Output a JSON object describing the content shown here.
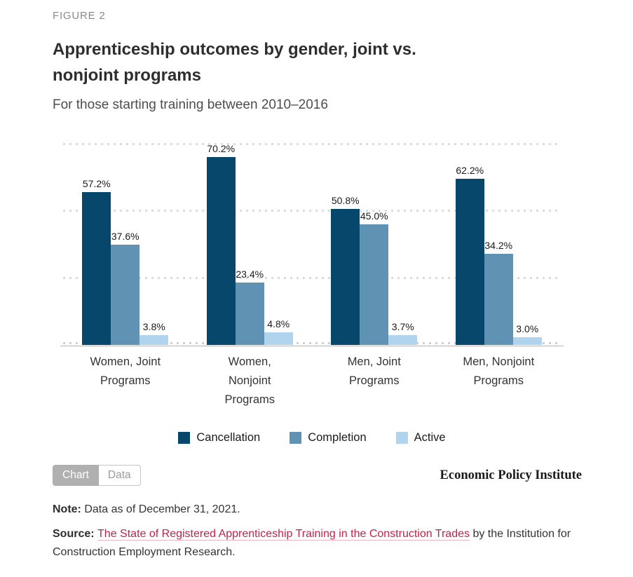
{
  "figure_label": "FIGURE 2",
  "title": "Apprenticeship outcomes by gender, joint vs. nonjoint programs",
  "subtitle": "For those starting training between 2010–2016",
  "chart_data": {
    "type": "bar",
    "categories": [
      "Women, Joint Programs",
      "Women, Nonjoint Programs",
      "Men, Joint Programs",
      "Men, Nonjoint Programs"
    ],
    "series": [
      {
        "name": "Cancellation",
        "color": "#07476c",
        "values": [
          57.2,
          70.2,
          50.8,
          62.2
        ]
      },
      {
        "name": "Completion",
        "color": "#6092b4",
        "values": [
          37.6,
          23.4,
          45.0,
          34.2
        ]
      },
      {
        "name": "Active",
        "color": "#b0d3ee",
        "values": [
          3.8,
          4.8,
          3.7,
          3.0
        ]
      }
    ],
    "value_suffix": "%",
    "value_decimals": 1,
    "ylim": [
      0,
      75
    ],
    "gridlines": [
      25,
      50,
      75
    ],
    "grid_style": "dotted-horizontal",
    "y_axis_labels_visible": false,
    "legend_position": "bottom",
    "data_labels": "above-bars"
  },
  "colors": {
    "cancellation": "#07476c",
    "completion": "#6092b4",
    "active": "#b0d3ee",
    "link": "#c22349",
    "gridline": "#dcdcdc"
  },
  "toolbar": {
    "chart_tab": "Chart",
    "data_tab": "Data",
    "active_tab": "Chart"
  },
  "branding": "Economic Policy Institute",
  "note": {
    "label": "Note:",
    "text": " Data as of December 31, 2021."
  },
  "source": {
    "label": "Source:",
    "link_text": "The State of Registered Apprenticeship Training in the Construction Trades",
    "suffix": " by the Institution for Construction Employment Research."
  }
}
